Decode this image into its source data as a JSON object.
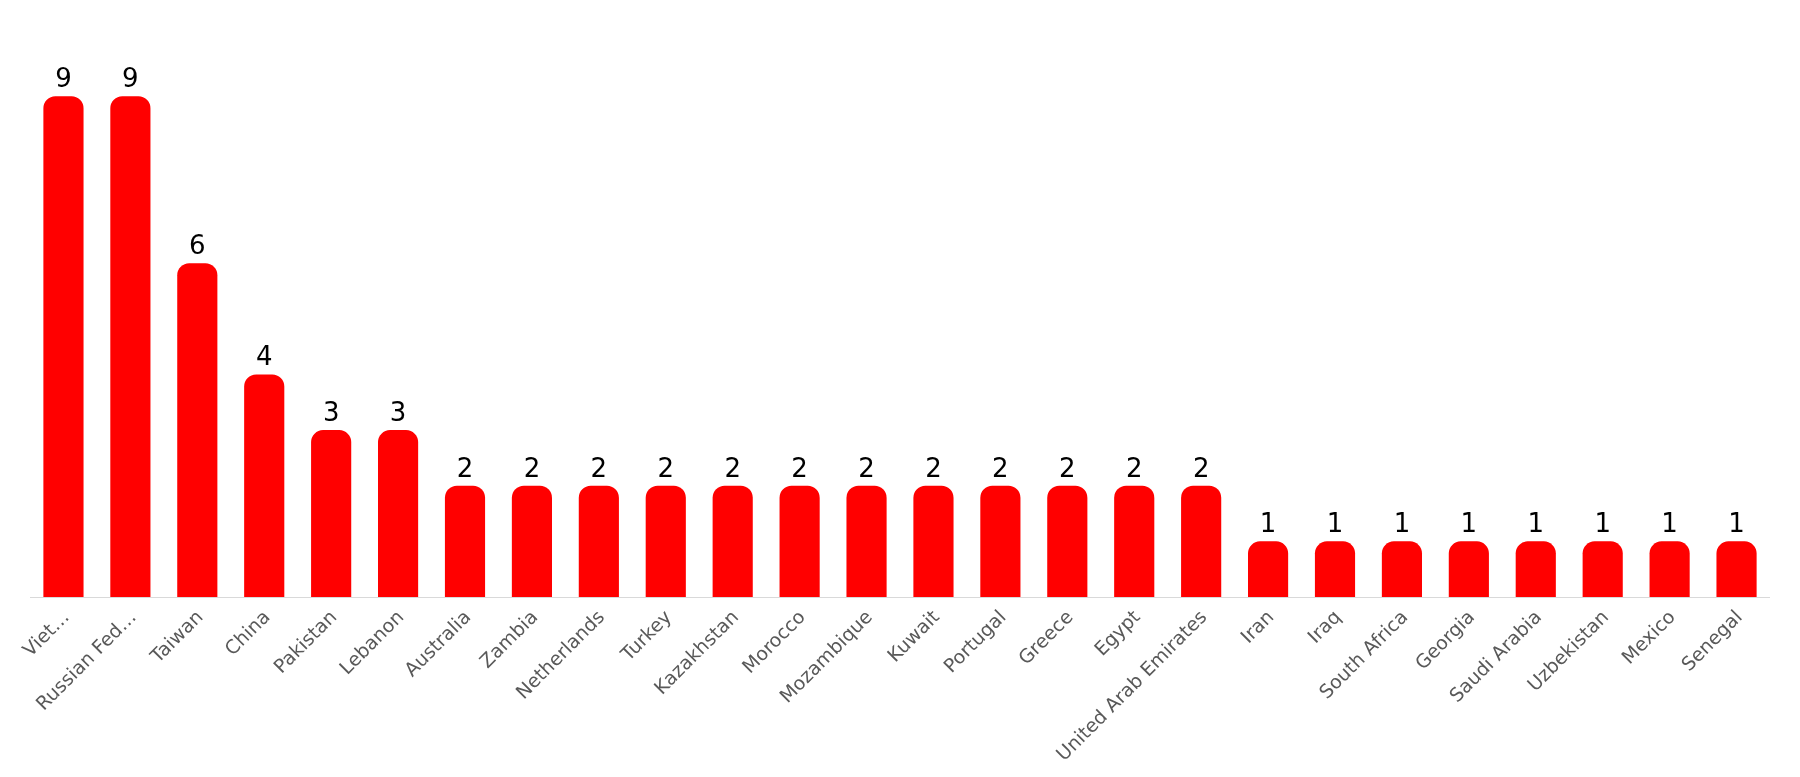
{
  "chart_data": {
    "type": "bar",
    "categories": [
      "Viet…",
      "Russian Fed…",
      "Taiwan",
      "China",
      "Pakistan",
      "Lebanon",
      "Australia",
      "Zambia",
      "Netherlands",
      "Turkey",
      "Kazakhstan",
      "Morocco",
      "Mozambique",
      "Kuwait",
      "Portugal",
      "Greece",
      "Egypt",
      "United Arab Emirates",
      "Iran",
      "Iraq",
      "South Africa",
      "Georgia",
      "Saudi Arabia",
      "Uzbekistan",
      "Mexico",
      "Senegal"
    ],
    "values": [
      9,
      9,
      6,
      4,
      3,
      3,
      2,
      2,
      2,
      2,
      2,
      2,
      2,
      2,
      2,
      2,
      2,
      2,
      1,
      1,
      1,
      1,
      1,
      1,
      1,
      1
    ],
    "color": "#ff0000",
    "data_labels": true
  }
}
